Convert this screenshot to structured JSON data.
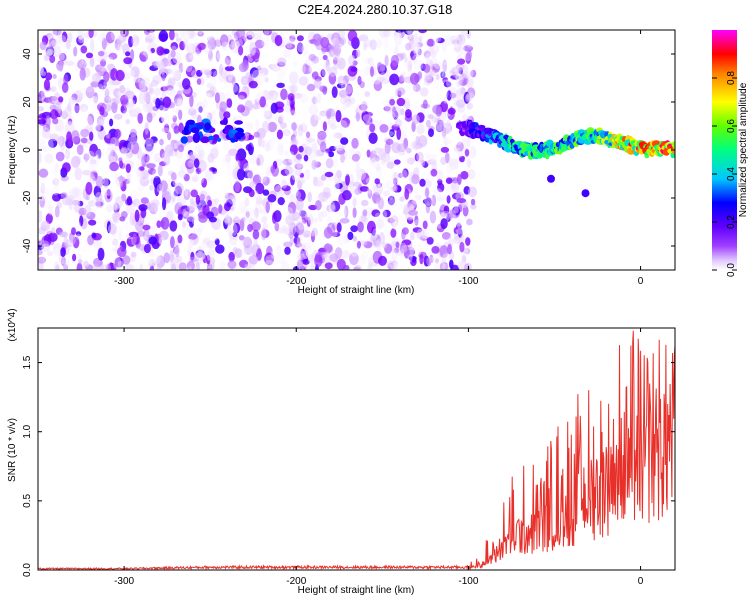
{
  "figure_title": "C2E4.2024.280.10.37.G18",
  "chart_data": [
    {
      "type": "heatmap",
      "xlabel": "Height of straight line (km)",
      "ylabel": "Frequency (Hz)",
      "xlim": [
        -350,
        20
      ],
      "ylim": [
        -50,
        50
      ],
      "x_ticks": [
        -300,
        -200,
        -100,
        0
      ],
      "x_tick_labels": [
        "-300",
        "-200",
        "-100",
        "0"
      ],
      "y_ticks": [
        -40,
        -20,
        0,
        20,
        40
      ],
      "y_tick_labels": [
        "-40",
        "-20",
        "0",
        "20",
        "40"
      ],
      "colorbar": {
        "label": "Normalized spectral amplitude",
        "range": [
          0,
          1
        ],
        "ticks": [
          0.0,
          0.2,
          0.4,
          0.6,
          0.8
        ],
        "tick_labels": [
          "0.0",
          "0.2",
          "0.4",
          "0.6",
          "0.8"
        ],
        "colormap": [
          "#ffffff",
          "#d9b3ff",
          "#8000ff",
          "#0000ff",
          "#00c8ff",
          "#00ff80",
          "#80ff00",
          "#ffff00",
          "#ff8000",
          "#ff0000",
          "#ff00ff"
        ]
      },
      "noise_region": {
        "x": [
          -350,
          -97
        ],
        "y": [
          -50,
          50
        ],
        "amplitude_range": [
          0.0,
          0.25
        ]
      },
      "signal_ridge": {
        "x": [
          -105,
          -95,
          -85,
          -75,
          -65,
          -55,
          -45,
          -35,
          -25,
          -15,
          -5,
          5,
          15,
          20
        ],
        "y": [
          10,
          8,
          5,
          2,
          -1,
          0,
          2,
          5,
          6,
          4,
          2,
          0,
          1,
          0
        ],
        "amplitude": [
          0.25,
          0.3,
          0.4,
          0.5,
          0.5,
          0.55,
          0.55,
          0.6,
          0.6,
          0.7,
          0.85,
          0.95,
          0.9,
          0.85
        ]
      },
      "feature_cluster": {
        "x": [
          -265,
          -230
        ],
        "y": [
          4,
          12
        ],
        "amplitude": 0.3
      },
      "outlier_points": {
        "x": [
          -52,
          -32
        ],
        "y": [
          -12,
          -18
        ],
        "amplitude": 0.25
      }
    },
    {
      "type": "line",
      "xlabel": "Height of straight line (km)",
      "ylabel": "SNR (10 * v/v)",
      "scale_label": "(x10^4)",
      "xlim": [
        -350,
        20
      ],
      "ylim": [
        0,
        1.75
      ],
      "x_ticks": [
        -300,
        -200,
        -100,
        0
      ],
      "x_tick_labels": [
        "-300",
        "-200",
        "-100",
        "0"
      ],
      "y_ticks": [
        0.0,
        0.5,
        1.0,
        1.5
      ],
      "y_tick_labels": [
        "0.0",
        "0.5",
        "1.0",
        "1.5"
      ],
      "color": "#e8302a",
      "series": [
        {
          "x": [
            -350,
            -300,
            -250,
            -200,
            -150,
            -110,
            -100,
            -95,
            -90,
            -85,
            -80,
            -75,
            -70,
            -65,
            -60,
            -55,
            -50,
            -45,
            -40,
            -35,
            -30,
            -25,
            -20,
            -15,
            -10,
            -5,
            0,
            5,
            10,
            15,
            20
          ],
          "y": [
            0.01,
            0.01,
            0.02,
            0.02,
            0.02,
            0.02,
            0.02,
            0.05,
            0.08,
            0.15,
            0.25,
            0.35,
            0.38,
            0.4,
            0.45,
            0.5,
            0.55,
            0.6,
            0.65,
            0.75,
            0.8,
            0.85,
            0.95,
            1.0,
            1.05,
            1.15,
            1.2,
            1.25,
            1.3,
            1.35,
            1.4
          ],
          "y_peak": [
            0.02,
            0.03,
            0.03,
            0.03,
            0.03,
            0.03,
            0.04,
            0.1,
            0.2,
            0.4,
            0.55,
            0.65,
            0.7,
            0.75,
            0.9,
            0.9,
            1.05,
            1.1,
            1.15,
            1.25,
            1.3,
            1.35,
            1.55,
            1.6,
            1.65,
            1.75,
            1.55,
            1.5,
            1.55,
            1.5,
            1.45
          ]
        }
      ]
    }
  ]
}
